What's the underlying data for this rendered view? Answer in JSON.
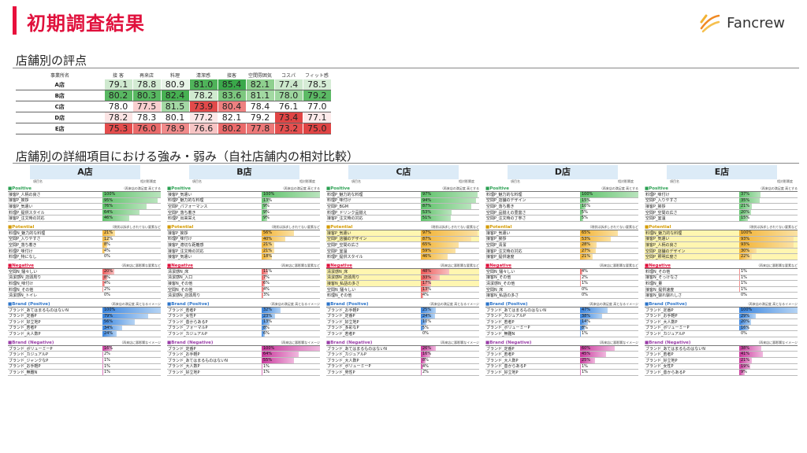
{
  "header": {
    "title": "初期調査結果",
    "logo_text": "Fancrew"
  },
  "section1": {
    "title": "店舗別の評点",
    "columns": [
      "事業所名",
      "接 客",
      "再来店",
      "料理",
      "清潔感",
      "接客",
      "空間雰囲気",
      "コスパ",
      "フィット感"
    ],
    "rows": [
      {
        "store": "A店",
        "values": [
          "79.1",
          "78.8",
          "80.9",
          "81.0",
          "85.4",
          "82.1",
          "77.4",
          "78.5"
        ],
        "colors": [
          "#cfe9cf",
          "#d3ebd3",
          "#e8f4e8",
          "#4fb35a",
          "#3aa84a",
          "#8fd08f",
          "#cce8cc",
          "#d6ecd6"
        ]
      },
      {
        "store": "B店",
        "values": [
          "80.2",
          "80.3",
          "82.4",
          "78.2",
          "83.6",
          "81.1",
          "78.0",
          "79.2"
        ],
        "colors": [
          "#59b862",
          "#58b861",
          "#47b052",
          "#d0eacf",
          "#7cc77e",
          "#a2d9a2",
          "#9dd69e",
          "#5cba65"
        ]
      },
      {
        "store": "C店",
        "values": [
          "78.0",
          "77.5",
          "81.5",
          "73.9",
          "80.4",
          "78.4",
          "76.1",
          "77.0"
        ],
        "colors": [
          "#ffffff",
          "#f8cfcf",
          "#a4d8a4",
          "#e24a4a",
          "#ee8080",
          "#ffffff",
          "#ffffff",
          "#ffffff"
        ]
      },
      {
        "store": "D店",
        "values": [
          "78.2",
          "78.3",
          "80.1",
          "77.2",
          "82.1",
          "79.2",
          "73.4",
          "77.1"
        ],
        "colors": [
          "#fbe4e4",
          "#ffffff",
          "#ffffff",
          "#fce8e8",
          "#ffffff",
          "#ffffff",
          "#e04545",
          "#fdeaea"
        ]
      },
      {
        "store": "E店",
        "values": [
          "75.3",
          "76.0",
          "78.9",
          "76.6",
          "80.2",
          "77.8",
          "73.2",
          "75.0"
        ],
        "colors": [
          "#e44c4c",
          "#ea6a6a",
          "#f08a8a",
          "#f7c4c4",
          "#ea6a6a",
          "#ec7878",
          "#e54f4f",
          "#e04444"
        ]
      }
    ]
  },
  "section2": {
    "title": "店舗別の詳細項目における強み・弱み（自社店舗内の相対比較）",
    "col_item": "項目名",
    "col_value": "相対影響度",
    "stores": [
      {
        "name": "A店",
        "cats": [
          {
            "key": "pos",
            "label": "■Positive",
            "note": "（再来店の満足度 高とする",
            "items": [
              [
                "接客P_人柄の良さ",
                "100%",
                100
              ],
              [
                "接客P_挨拶",
                "95%",
                95
              ],
              [
                "接客P_気遣い",
                "76%",
                76
              ],
              [
                "料理P_提供スタイル",
                "64%",
                64
              ],
              [
                "接客P_注文時の対応",
                "46%",
                46
              ]
            ]
          },
          {
            "key": "pot",
            "label": "■Potential",
            "note": "（現状は訴求しきれてない要素など",
            "items": [
              [
                "料理N_魅力的な料理",
                "21%",
                21
              ],
              [
                "空間P_入りやすさ",
                "12%",
                12
              ],
              [
                "空間P_落ち着き",
                "8%",
                8
              ],
              [
                "料理P_味付け",
                "4%",
                4
              ],
              [
                "料理P_特になし",
                "0%",
                0
              ]
            ]
          },
          {
            "key": "neg",
            "label": "■Negative",
            "note": "（再来店に悪影響な要素など",
            "items": [
              [
                "空間N_騒々しい",
                "20%",
                20
              ],
              [
                "清潔感N_店頭周り",
                "8%",
                8
              ],
              [
                "料理N_味付け",
                "4%",
                4
              ],
              [
                "料理N_その他",
                "2%",
                2
              ],
              [
                "清潔感N_トイレ",
                "0%",
                0
              ]
            ]
          },
          {
            "key": "bp",
            "label": "■Brand (Positve)",
            "note": "（再来店の満足度 高となるイメージ",
            "items": [
              [
                "ブランド_あてはまるものはないN",
                "100%",
                100
              ],
              [
                "ブランド_定番P",
                "79%",
                79
              ],
              [
                "ブランド_好立地P",
                "56%",
                56
              ],
              [
                "ブランド_若者P",
                "34%",
                34
              ],
              [
                "ブランド_大人数P",
                "24%",
                24
              ]
            ]
          },
          {
            "key": "bn",
            "label": "■Brand (Negative)",
            "note": "（再来店に悪影響なイメージ",
            "items": [
              [
                "ブランド_ボリューミーP",
                "16%",
                16
              ],
              [
                "ブランド_カジュアルP",
                "2%",
                2
              ],
              [
                "ブランド_ジャンクなP",
                "1%",
                1
              ],
              [
                "ブランド_お手軽P",
                "1%",
                1
              ],
              [
                "ブランド_無難N",
                "1%",
                1
              ]
            ]
          }
        ]
      },
      {
        "name": "B店",
        "cats": [
          {
            "key": "pos",
            "label": "■Positive",
            "note": "（再来店の満足度 高とする",
            "items": [
              [
                "接客P_気遣い",
                "100%",
                100
              ],
              [
                "料理P_魅力的な料理",
                "13%",
                13
              ],
              [
                "空間P_パフォーマンス",
                "9%",
                9
              ],
              [
                "空間P_落ち着き",
                "9%",
                9
              ],
              [
                "料理P_出来栄え",
                "9%",
                9
              ]
            ]
          },
          {
            "key": "pot",
            "label": "■Potential",
            "note": "（現状は訴求しきれてない要素など",
            "items": [
              [
                "接客P_挨拶",
                "56%",
                56
              ],
              [
                "料理P_味付け",
                "40%",
                40
              ],
              [
                "接客P_適切な距離感",
                "21%",
                21
              ],
              [
                "接客P_注文時の対応",
                "21%",
                21
              ],
              [
                "接客P_気遣い",
                "18%",
                18
              ]
            ]
          },
          {
            "key": "neg",
            "label": "■Negative",
            "note": "（再来店に悪影響な要素など",
            "items": [
              [
                "清潔感N_床",
                "11%",
                11
              ],
              [
                "清潔感N_入口",
                "7%",
                7
              ],
              [
                "接客N_その他",
                "6%",
                6
              ],
              [
                "空間N_その他",
                "4%",
                4
              ],
              [
                "清潔感N_店頭周り",
                "3%",
                3
              ]
            ]
          },
          {
            "key": "bp",
            "label": "■Brand (Positve)",
            "note": "（再来店の満足度 高となるイメージ",
            "items": [
              [
                "ブランド_若者P",
                "32%",
                32
              ],
              [
                "ブランド_女性P",
                "23%",
                23
              ],
              [
                "ブランド_昔からあるP",
                "13%",
                13
              ],
              [
                "ブランド_フォーマルP",
                "8%",
                8
              ],
              [
                "ブランド_カジュアルP",
                "6%",
                6
              ]
            ]
          },
          {
            "key": "bn",
            "label": "■Brand (Negative)",
            "note": "（再来店に悪影響なイメージ",
            "items": [
              [
                "ブランド_定番P",
                "100%",
                100
              ],
              [
                "ブランド_お手軽P",
                "64%",
                64
              ],
              [
                "ブランド_あてはまるものはないN",
                "55%",
                55
              ],
              [
                "ブランド_大人数P",
                "1%",
                1
              ],
              [
                "ブランド_好立地P",
                "1%",
                1
              ]
            ]
          }
        ]
      },
      {
        "name": "C店",
        "cats": [
          {
            "key": "pos",
            "label": "■Positive",
            "note": "（再来店の満足度 高とする",
            "items": [
              [
                "料理P_魅力的な料理",
                "97%",
                97
              ],
              [
                "料理P_味付け",
                "94%",
                94
              ],
              [
                "空間P_BGM",
                "87%",
                87
              ],
              [
                "料理P_ドリンク品揃え",
                "53%",
                53
              ],
              [
                "接客P_注文時の対応",
                "51%",
                51
              ]
            ]
          },
          {
            "key": "pot",
            "label": "■Potential",
            "note": "（現状は訴求しきれてない要素など",
            "items": [
              [
                "接客P_気遣い",
                "97%",
                97
              ],
              [
                "空間P_店舗のデザイン",
                "87%",
                87
              ],
              [
                "空間P_空間の広さ",
                "65%",
                65
              ],
              [
                "空間P_室温",
                "59%",
                59
              ],
              [
                "料理P_提供スタイル",
                "46%",
                46
              ]
            ]
          },
          {
            "key": "neg",
            "label": "■Negative",
            "note": "（再来店に悪影響な要素など",
            "items": [
              [
                "清潔感N_床",
                "48%",
                48
              ],
              [
                "清潔感N_店頭周り",
                "33%",
                33
              ],
              [
                "接客N_私語の多さ",
                "17%",
                17
              ],
              [
                "空間N_騒々しい",
                "13%",
                13
              ],
              [
                "料理N_その他",
                "4%",
                4
              ]
            ]
          },
          {
            "key": "bp",
            "label": "■Brand (Positve)",
            "note": "（再来店の満足度 高となるイメージ",
            "items": [
              [
                "ブランド_お手軽P",
                "25%",
                25
              ],
              [
                "ブランド_定番P",
                "24%",
                24
              ],
              [
                "ブランド_好立地P",
                "10%",
                10
              ],
              [
                "ブランド_多彩なP",
                "5%",
                5
              ],
              [
                "ブランド_若者P",
                "0%",
                0
              ]
            ]
          },
          {
            "key": "bn",
            "label": "■Brand (Negative)",
            "note": "（再来店に悪影響なイメージ",
            "items": [
              [
                "ブランド_あてはまるものはないN",
                "26%",
                26
              ],
              [
                "ブランド_カジュアルP",
                "16%",
                16
              ],
              [
                "ブランド_大人数P",
                "8%",
                8
              ],
              [
                "ブランド_ボリューミーP",
                "4%",
                4
              ],
              [
                "ブランド_男性P",
                "2%",
                2
              ]
            ]
          }
        ]
      },
      {
        "name": "D店",
        "cats": [
          {
            "key": "pos",
            "label": "■Positive",
            "note": "（再来店の満足度 高とする",
            "items": [
              [
                "料理P_魅力的な料理",
                "100%",
                100
              ],
              [
                "空間P_店舗のデザイン",
                "15%",
                15
              ],
              [
                "空間P_落ち着き",
                "10%",
                10
              ],
              [
                "空間P_品揃えの豊富さ",
                "5%",
                5
              ],
              [
                "空間P_注文時の丁寧さ",
                "5%",
                5
              ]
            ]
          },
          {
            "key": "pot",
            "label": "■Potential",
            "note": "（現状は訴求しきれてない要素など",
            "items": [
              [
                "接客P_気遣い",
                "65%",
                65
              ],
              [
                "接客P_挨拶",
                "53%",
                53
              ],
              [
                "空間P_清潔",
                "28%",
                28
              ],
              [
                "接客P_注文時の対応",
                "27%",
                27
              ],
              [
                "接客P_提供速度",
                "21%",
                21
              ]
            ]
          },
          {
            "key": "neg",
            "label": "■Negative",
            "note": "（再来店に悪影響な要素など",
            "items": [
              [
                "空間N_騒々しい",
                "4%",
                4
              ],
              [
                "接客N_その他",
                "2%",
                2
              ],
              [
                "清潔感N_その他",
                "1%",
                1
              ],
              [
                "空間N_床",
                "0%",
                0
              ],
              [
                "接客N_私語の多さ",
                "0%",
                0
              ]
            ]
          },
          {
            "key": "bp",
            "label": "■Brand (Positve)",
            "note": "（再来店の満足度 高となるイメージ",
            "items": [
              [
                "ブランド_あてはまるものはないN",
                "47%",
                47
              ],
              [
                "ブランド_カジュアルP",
                "38%",
                38
              ],
              [
                "ブランド_若者P",
                "14%",
                14
              ],
              [
                "ブランド_ボリューミーP",
                "8%",
                8
              ],
              [
                "ブランド_無難N",
                "1%",
                1
              ]
            ]
          },
          {
            "key": "bn",
            "label": "■Brand (Negative)",
            "note": "（再来店に悪影響なイメージ",
            "items": [
              [
                "ブランド_定番P",
                "60%",
                60
              ],
              [
                "ブランド_若者P",
                "45%",
                45
              ],
              [
                "ブランド_大人数P",
                "25%",
                25
              ],
              [
                "ブランド_昔からあるP",
                "1%",
                1
              ],
              [
                "ブランド_好立地P",
                "1%",
                1
              ]
            ]
          }
        ]
      },
      {
        "name": "E店",
        "cats": [
          {
            "key": "pos",
            "label": "■Positive",
            "note": "（再来店の満足度 高とする",
            "items": [
              [
                "料理P_味付け",
                "37%",
                37
              ],
              [
                "空間P_入りやすさ",
                "35%",
                35
              ],
              [
                "接客P_挨拶",
                "21%",
                21
              ],
              [
                "空間P_空間の広さ",
                "20%",
                20
              ],
              [
                "空間P_室温",
                "15%",
                15
              ]
            ]
          },
          {
            "key": "pot",
            "label": "■Potential",
            "note": "（現状は訴求しきれてない要素など",
            "items": [
              [
                "料理N_魅力的な料理",
                "100%",
                100
              ],
              [
                "接客P_気遣い",
                "93%",
                93
              ],
              [
                "接客P_人柄の良さ",
                "93%",
                93
              ],
              [
                "空間P_店舗のデザイン",
                "30%",
                30
              ],
              [
                "空間P_照明広度さ",
                "22%",
                22
              ]
            ]
          },
          {
            "key": "neg",
            "label": "■Negative",
            "note": "（再来店に悪影響な要素など",
            "items": [
              [
                "料理N_その他",
                "1%",
                1
              ],
              [
                "接客N_そっけなさ",
                "1%",
                1
              ],
              [
                "料理N_量",
                "1%",
                1
              ],
              [
                "接客N_提供速度",
                "1%",
                1
              ],
              [
                "接客N_馴れ馴れしさ",
                "0%",
                0
              ]
            ]
          },
          {
            "key": "bp",
            "label": "■Brand (Positve)",
            "note": "（再来店の満足度 高となるイメージ",
            "items": [
              [
                "ブランド_定番P",
                "100%",
                100
              ],
              [
                "ブランド_お手軽P",
                "29%",
                29
              ],
              [
                "ブランド_大人数P",
                "20%",
                20
              ],
              [
                "ブランド_ボリューミーP",
                "16%",
                16
              ],
              [
                "ブランド_カジュアルP",
                "0%",
                0
              ]
            ]
          },
          {
            "key": "bn",
            "label": "■Brand (Negative)",
            "note": "（再来店に悪影響なイメージ",
            "items": [
              [
                "ブランド_あてはまるものはないN",
                "38%",
                38
              ],
              [
                "ブランド_若者P",
                "41%",
                41
              ],
              [
                "ブランド_好立地P",
                "21%",
                21
              ],
              [
                "ブランド_女性P",
                "19%",
                19
              ],
              [
                "ブランド_昔からあるP",
                "9%",
                9
              ]
            ]
          }
        ]
      }
    ]
  }
}
